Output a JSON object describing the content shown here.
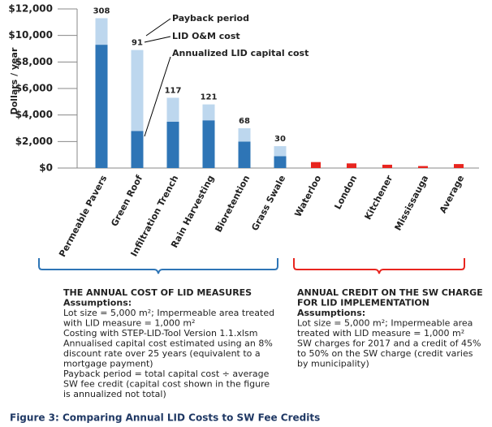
{
  "chart_data": {
    "type": "bar",
    "stacked": true,
    "y_label": "Dollars / year",
    "categories": [
      "Permeable Pavers",
      "Green Roof",
      "Infiltration Trench",
      "Rain Harvesting",
      "Bioretention",
      "Grass Swale",
      "Waterloo",
      "London",
      "Kitchener",
      "Mississauga",
      "Average"
    ],
    "series": [
      {
        "name": "Annualized LID capital cost",
        "color": "#2e75b6",
        "values": [
          9300,
          2800,
          3500,
          3600,
          2000,
          900,
          null,
          null,
          null,
          null,
          null
        ]
      },
      {
        "name": "LID O&M cost",
        "color": "#bdd7ee",
        "values": [
          2000,
          6100,
          1800,
          1200,
          1000,
          750,
          null,
          null,
          null,
          null,
          null
        ]
      },
      {
        "color": "#e8251f",
        "values": [
          null,
          null,
          null,
          null,
          null,
          null,
          450,
          350,
          250,
          150,
          300
        ]
      }
    ],
    "payback": {
      "label": "Payback period",
      "values": [
        308,
        91,
        117,
        121,
        68,
        30,
        null,
        null,
        null,
        null,
        null
      ]
    },
    "ylim": [
      0,
      12000
    ],
    "yticks": [
      {
        "value": 0,
        "label": "$0"
      },
      {
        "value": 2000,
        "label": "$2,000"
      },
      {
        "value": 4000,
        "label": "$4,000"
      },
      {
        "value": 6000,
        "label": "$6,000"
      },
      {
        "value": 8000,
        "label": "$8,000"
      },
      {
        "value": 10000,
        "label": "$10,000"
      },
      {
        "value": 12000,
        "label": "$12,000"
      }
    ],
    "notes": [
      {
        "title": [
          "THE ANNUAL COST OF LID MEASURES"
        ],
        "subtitle": "Assumptions:",
        "lines": [
          "Lot size = 5,000 m²; Impermeable area treated",
          "with LID measure = 1,000 m²",
          "Costing with STEP-LID-Tool Version 1.1.xlsm",
          "Annualised capital cost estimated using an 8%",
          "discount rate over 25 years (equivalent to a",
          "mortgage payment)",
          "Payback period = total capital cost ÷ average",
          "SW fee credit (capital cost shown in the figure",
          "is annualized not total)"
        ]
      },
      {
        "title": [
          "ANNUAL CREDIT ON THE SW CHARGE",
          "FOR LID IMPLEMENTATION"
        ],
        "subtitle": "Assumptions:",
        "lines": [
          "Lot size = 5,000 m²; Impermeable area",
          "treated with LID measure = 1,000 m²",
          "SW charges for 2017 and a credit of 45%",
          "to 50% on the SW charge (credit varies",
          "by municipality)"
        ]
      }
    ],
    "caption": "Figure 3:  Comparing Annual LID Costs to SW Fee Credits"
  }
}
